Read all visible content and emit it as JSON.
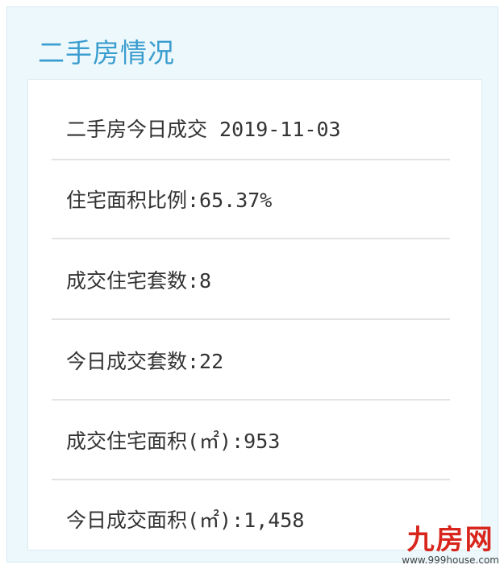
{
  "panel": {
    "title": "二手房情况"
  },
  "rows": [
    {
      "text": "二手房今日成交 2019-11-03"
    },
    {
      "text": "住宅面积比例:65.37%"
    },
    {
      "text": "成交住宅套数:8"
    },
    {
      "text": "今日成交套数:22"
    },
    {
      "text": "成交住宅面积(㎡):953"
    },
    {
      "text": "今日成交面积(㎡):1,458"
    }
  ],
  "watermark": {
    "logo": "九房网",
    "url": "www.999house.com"
  },
  "colors": {
    "title": "#3a9dcf",
    "panel_bg": "#edf8fc",
    "watermark": "#d8261c"
  }
}
